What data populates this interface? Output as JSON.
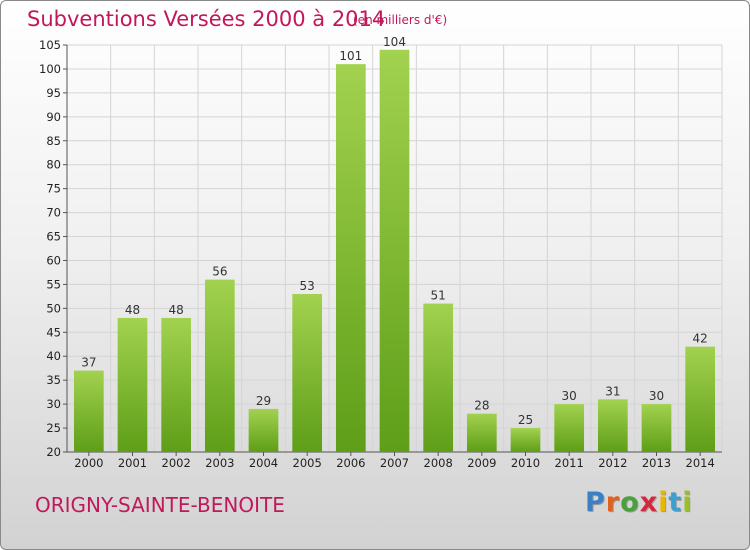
{
  "chart_data": {
    "type": "bar",
    "title": "Subventions Versées 2000 à 2014",
    "subtitle": "(en milliers d'€)",
    "categories": [
      "2000",
      "2001",
      "2002",
      "2003",
      "2004",
      "2005",
      "2006",
      "2007",
      "2008",
      "2009",
      "2010",
      "2011",
      "2012",
      "2013",
      "2014"
    ],
    "values": [
      37,
      48,
      48,
      56,
      29,
      53,
      101,
      104,
      51,
      28,
      25,
      30,
      31,
      30,
      42
    ],
    "ylim": [
      20,
      105
    ],
    "yticks": [
      20,
      25,
      30,
      35,
      40,
      45,
      50,
      55,
      60,
      65,
      70,
      75,
      80,
      85,
      90,
      95,
      100,
      105
    ],
    "grid": true,
    "bar_color": "#7dbb2e"
  },
  "footer": {
    "commune": "ORIGNY-SAINTE-BENOITE",
    "logo_letters": [
      "P",
      "r",
      "o",
      "x",
      "i",
      "t",
      "i"
    ],
    "logo_colors": [
      "#3b7fc4",
      "#e0621e",
      "#4aa03c",
      "#d6283d",
      "#e8b800",
      "#3b9fd4",
      "#9bbe2e"
    ]
  }
}
